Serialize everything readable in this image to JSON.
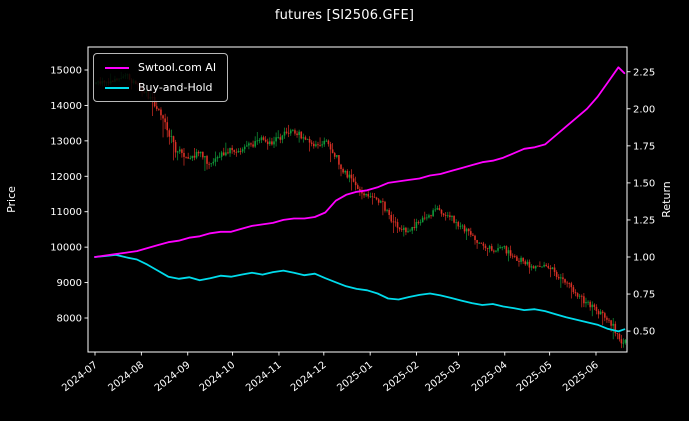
{
  "title": "futures [SI2506.GFE]",
  "colors": {
    "background": "#000000",
    "text": "#ffffff",
    "axis": "#ffffff",
    "up_candle": "#0f9b3a",
    "down_candle": "#d93025",
    "ai_line": "#ff00ff",
    "bh_line": "#00dcec",
    "legend_border": "#b9b9b9"
  },
  "legend": {
    "items": [
      {
        "label": "Swtool.com AI",
        "color_key": "ai_line"
      },
      {
        "label": "Buy-and-Hold",
        "color_key": "bh_line"
      }
    ]
  },
  "axes": {
    "left_label": "Price",
    "right_label": "Return",
    "price_ticks": [
      8000,
      9000,
      10000,
      11000,
      12000,
      13000,
      14000,
      15000
    ],
    "return_ticks": [
      0.5,
      0.75,
      1.0,
      1.25,
      1.5,
      1.75,
      2.0,
      2.25
    ],
    "x_ticks": [
      "2024-07",
      "2024-08",
      "2024-09",
      "2024-10",
      "2024-11",
      "2024-12",
      "2025-01",
      "2025-02",
      "2025-03",
      "2025-04",
      "2025-05",
      "2025-06"
    ]
  },
  "chart_data": {
    "type": "candlestick+line",
    "title": "futures [SI2506.GFE]",
    "xlabel": "",
    "ylabel_left": "Price",
    "ylabel_right": "Return",
    "price_axis_range": [
      7040,
      15650
    ],
    "return_axis_range": [
      0.36,
      2.42
    ],
    "grid": false,
    "legend_position": "upper left",
    "dates": [
      "2024-07-01",
      "2024-07-08",
      "2024-07-15",
      "2024-07-22",
      "2024-07-29",
      "2024-08-05",
      "2024-08-12",
      "2024-08-19",
      "2024-08-26",
      "2024-09-02",
      "2024-09-09",
      "2024-09-16",
      "2024-09-23",
      "2024-09-30",
      "2024-10-07",
      "2024-10-14",
      "2024-10-21",
      "2024-10-28",
      "2024-11-04",
      "2024-11-11",
      "2024-11-18",
      "2024-11-25",
      "2024-12-02",
      "2024-12-09",
      "2024-12-16",
      "2024-12-23",
      "2024-12-30",
      "2025-01-06",
      "2025-01-13",
      "2025-01-20",
      "2025-01-27",
      "2025-02-03",
      "2025-02-10",
      "2025-02-17",
      "2025-02-24",
      "2025-03-03",
      "2025-03-10",
      "2025-03-17",
      "2025-03-24",
      "2025-03-31",
      "2025-04-07",
      "2025-04-14",
      "2025-04-21",
      "2025-04-28",
      "2025-05-05",
      "2025-05-12",
      "2025-05-19",
      "2025-05-26",
      "2025-06-02",
      "2025-06-09",
      "2025-06-16",
      "2025-06-20"
    ],
    "price_weekly_ohlc": {
      "columns": [
        "date",
        "open",
        "high",
        "low",
        "close"
      ],
      "rows": [
        [
          "2024-07-01",
          14600,
          14800,
          14450,
          14650
        ],
        [
          "2024-07-08",
          14650,
          14900,
          14550,
          14750
        ],
        [
          "2024-07-15",
          14750,
          14950,
          14650,
          14850
        ],
        [
          "2024-07-22",
          14850,
          14900,
          14450,
          14600
        ],
        [
          "2024-07-29",
          14600,
          14750,
          14250,
          14400
        ],
        [
          "2024-08-05",
          14400,
          14450,
          13700,
          13900
        ],
        [
          "2024-08-12",
          13900,
          13950,
          13100,
          13300
        ],
        [
          "2024-08-19",
          13300,
          13350,
          12450,
          12700
        ],
        [
          "2024-08-26",
          12700,
          12850,
          12300,
          12500
        ],
        [
          "2024-09-02",
          12500,
          12800,
          12400,
          12650
        ],
        [
          "2024-09-09",
          12650,
          12700,
          12150,
          12350
        ],
        [
          "2024-09-16",
          12350,
          12700,
          12250,
          12550
        ],
        [
          "2024-09-23",
          12550,
          12950,
          12450,
          12800
        ],
        [
          "2024-09-30",
          12800,
          12900,
          12550,
          12700
        ],
        [
          "2024-10-07",
          12700,
          13000,
          12600,
          12900
        ],
        [
          "2024-10-14",
          12900,
          13250,
          12800,
          13100
        ],
        [
          "2024-10-21",
          13100,
          13150,
          12750,
          12900
        ],
        [
          "2024-10-28",
          12900,
          13300,
          12800,
          13150
        ],
        [
          "2024-11-04",
          13150,
          13450,
          13050,
          13300
        ],
        [
          "2024-11-11",
          13300,
          13350,
          12950,
          13100
        ],
        [
          "2024-11-18",
          13100,
          13150,
          12700,
          12850
        ],
        [
          "2024-11-25",
          12850,
          13100,
          12750,
          13000
        ],
        [
          "2024-12-02",
          13000,
          13050,
          12400,
          12550
        ],
        [
          "2024-12-09",
          12550,
          12600,
          12000,
          12150
        ],
        [
          "2024-12-16",
          12150,
          12200,
          11600,
          11750
        ],
        [
          "2024-12-23",
          11750,
          11800,
          11350,
          11500
        ],
        [
          "2024-12-30",
          11500,
          11600,
          11200,
          11350
        ],
        [
          "2025-01-06",
          11350,
          11400,
          10900,
          11050
        ],
        [
          "2025-01-13",
          11050,
          11100,
          10400,
          10550
        ],
        [
          "2025-01-20",
          10550,
          10700,
          10300,
          10450
        ],
        [
          "2025-01-27",
          10450,
          10800,
          10350,
          10700
        ],
        [
          "2025-02-03",
          10700,
          11000,
          10600,
          10900
        ],
        [
          "2025-02-10",
          10900,
          11200,
          10800,
          11050
        ],
        [
          "2025-02-17",
          11050,
          11100,
          10750,
          10850
        ],
        [
          "2025-02-24",
          10850,
          10900,
          10500,
          10600
        ],
        [
          "2025-03-03",
          10600,
          10650,
          10200,
          10350
        ],
        [
          "2025-03-10",
          10350,
          10400,
          9950,
          10100
        ],
        [
          "2025-03-17",
          10100,
          10150,
          9750,
          9900
        ],
        [
          "2025-03-24",
          9900,
          10100,
          9800,
          10000
        ],
        [
          "2025-03-31",
          10000,
          10050,
          9600,
          9750
        ],
        [
          "2025-04-07",
          9750,
          9800,
          9450,
          9600
        ],
        [
          "2025-04-14",
          9600,
          9650,
          9250,
          9400
        ],
        [
          "2025-04-21",
          9400,
          9600,
          9300,
          9500
        ],
        [
          "2025-04-28",
          9500,
          9550,
          9150,
          9300
        ],
        [
          "2025-05-05",
          9300,
          9350,
          8850,
          9000
        ],
        [
          "2025-05-12",
          9000,
          9050,
          8550,
          8700
        ],
        [
          "2025-05-19",
          8700,
          8750,
          8300,
          8450
        ],
        [
          "2025-05-26",
          8450,
          8500,
          8050,
          8200
        ],
        [
          "2025-06-02",
          8200,
          8250,
          7800,
          7950
        ],
        [
          "2025-06-09",
          7950,
          8000,
          7400,
          7550
        ],
        [
          "2025-06-16",
          7550,
          7600,
          7150,
          7300
        ],
        [
          "2025-06-20",
          7300,
          7600,
          7250,
          7500
        ]
      ]
    },
    "series": [
      {
        "name": "Swtool.com AI",
        "axis": "return",
        "color_key": "ai_line",
        "values": [
          1.0,
          1.01,
          1.02,
          1.03,
          1.04,
          1.06,
          1.08,
          1.1,
          1.11,
          1.13,
          1.14,
          1.16,
          1.17,
          1.17,
          1.19,
          1.21,
          1.22,
          1.23,
          1.25,
          1.26,
          1.26,
          1.27,
          1.3,
          1.38,
          1.42,
          1.44,
          1.45,
          1.47,
          1.5,
          1.51,
          1.52,
          1.53,
          1.55,
          1.56,
          1.58,
          1.6,
          1.62,
          1.64,
          1.65,
          1.67,
          1.7,
          1.73,
          1.74,
          1.76,
          1.82,
          1.88,
          1.94,
          2.0,
          2.08,
          2.18,
          2.28,
          2.24
        ]
      },
      {
        "name": "Buy-and-Hold",
        "axis": "return",
        "color_key": "bh_line",
        "values": [
          1.0,
          1.007,
          1.014,
          0.997,
          0.983,
          0.949,
          0.908,
          0.867,
          0.853,
          0.863,
          0.843,
          0.857,
          0.874,
          0.867,
          0.881,
          0.894,
          0.881,
          0.898,
          0.908,
          0.894,
          0.877,
          0.887,
          0.857,
          0.829,
          0.802,
          0.785,
          0.775,
          0.754,
          0.72,
          0.713,
          0.73,
          0.744,
          0.754,
          0.741,
          0.724,
          0.706,
          0.689,
          0.676,
          0.683,
          0.666,
          0.655,
          0.642,
          0.648,
          0.635,
          0.614,
          0.594,
          0.577,
          0.56,
          0.543,
          0.515,
          0.498,
          0.512
        ]
      }
    ]
  }
}
